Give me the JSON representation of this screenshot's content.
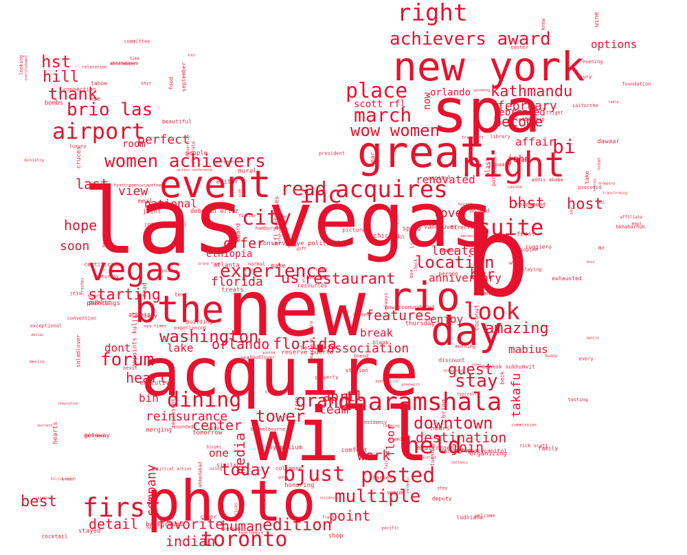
{
  "cloud": {
    "color": "#e8112d",
    "background": "#ffffff",
    "shape": "bird",
    "words": [
      "las",
      "vegas",
      "new",
      "spa",
      "b",
      "will",
      "acquire",
      "photo",
      "new york",
      "event",
      "great",
      "night",
      "day",
      "rio",
      "bthe",
      "dharamshala",
      "vegas",
      "dining",
      "toronto",
      "first",
      "look",
      "suite",
      "held",
      "posted",
      "bjust",
      "achievers award",
      "right",
      "place",
      "march",
      "women achievers",
      "airport",
      "brio las",
      "hst",
      "hill",
      "thank",
      "city",
      "inc",
      "acquires",
      "read",
      "experience",
      "location",
      "florida",
      "us",
      "restaurant",
      "washington",
      "orlando",
      "florida",
      "forum",
      "heart",
      "grand",
      "tower",
      "april",
      "team",
      "downtown",
      "destination",
      "join",
      "work",
      "media",
      "today",
      "multiple",
      "edition",
      "human",
      "indian",
      "favorite",
      "detail",
      "company",
      "point",
      "best",
      "stay",
      "guest",
      "amazing",
      "mabius",
      "takafu",
      "enjoy",
      "bar",
      "features",
      "break",
      "association",
      "anniversary",
      "offer",
      "ethiopia",
      "starting",
      "lake",
      "dont",
      "bin",
      "reinsurance",
      "center",
      "one",
      "floor",
      "hope",
      "soon",
      "last",
      "view",
      "national",
      "perfect",
      "room",
      "wow women",
      "kathmandu",
      "february",
      "become",
      "rebranded",
      "bi",
      "options",
      "affair",
      "bhst",
      "host",
      "renovated",
      "love",
      "located",
      "orlando",
      "scott rfl",
      "john",
      "now"
    ],
    "small_words": [
      "capitol",
      "throughout",
      "regencycapitol",
      "leadership",
      "merging",
      "certificate",
      "deborah ortiz",
      "rfl addresses",
      "hyattregencycapetown",
      "library",
      "addis ababa",
      "director",
      "hamburger",
      "food",
      "celebrate",
      "staying",
      "greenwich",
      "resources",
      "fresh",
      "manila",
      "vancouver",
      "tomorrow",
      "society",
      "puerto rico",
      "luxury",
      "using",
      "cool",
      "top",
      "fair",
      "text",
      "person",
      "crystal",
      "fairfax",
      "public",
      "comfort",
      "bigger",
      "plane",
      "tahoe",
      "fourth",
      "dropping",
      "hyattbmore",
      "pacific",
      "bicymi",
      "organized",
      "september",
      "saturday",
      "morning",
      "pool",
      "speed",
      "next",
      "wayne",
      "cheer",
      "win",
      "give",
      "mexico",
      "welcome",
      "bhst",
      "special",
      "back",
      "family",
      "manchester",
      "icarus",
      "pandemic",
      "sounded",
      "ruggiero",
      "newsroomupdated",
      "cocktail",
      "beautiful",
      "make",
      "property",
      "typically",
      "bombs",
      "stayed",
      "organizing",
      "recommend",
      "host",
      "use",
      "mr",
      "commission",
      "collapse",
      "attendance",
      "celebration",
      "cruces",
      "residents",
      "international",
      "executive",
      "recognizing",
      "ministry",
      "offerings",
      "evening",
      "nyc",
      "americas",
      "seafoodlover",
      "eastern shore",
      "charles",
      "spring",
      "atlanta",
      "symposium",
      "conservative political",
      "foundation",
      "brand flags",
      "tour",
      "blast",
      "affiliate",
      "international",
      "bankok sukhumvit",
      "portman",
      "rick scott",
      "table",
      "normal",
      "know",
      "side",
      "vietnam",
      "guess",
      "gift",
      "take",
      "box",
      "editor",
      "access",
      "skivacation",
      "saladlover",
      "chicago",
      "political action",
      "tuesday",
      "announced",
      "meal",
      "transport",
      "bcool",
      "people",
      "morning",
      "shop",
      "bexit",
      "wine",
      "hours",
      "mural",
      "art",
      "ludhiana",
      "honoring",
      "much",
      "represents",
      "building",
      "jeju",
      "road",
      "hellenic",
      "casino",
      "award",
      "dawaar",
      "presidency",
      "sky",
      "connection",
      "booked",
      "coconut",
      "check",
      "feast",
      "tasting",
      "bring",
      "raretuna",
      "crashes",
      "glassbottom",
      "president",
      "experienced",
      "marriage",
      "saiforthe",
      "cartagena",
      "category",
      "kuljit singh",
      "laughing",
      "jury",
      "exceptional",
      "upcoming",
      "flight",
      "discount",
      "looking",
      "convention",
      "exhausted",
      "staycation",
      "getaway",
      "ahmedabad",
      "reserve puerto",
      "bkhabarhub",
      "messe",
      "step",
      "maui",
      "oyo times",
      "appoints kuljit",
      "committee",
      "energy",
      "bunny",
      "trip",
      "miami",
      "ocean",
      "burrard",
      "deputy",
      "overshadowed",
      "scary",
      "january",
      "time",
      "area",
      "every",
      "venue",
      "easter",
      "near",
      "bleak",
      "precovid",
      "thursday",
      "posted",
      "background",
      "hearts",
      "bneed",
      "ahituna",
      "bguess",
      "station",
      "inner",
      "beven",
      "light",
      "joint",
      "dallas",
      "similar",
      "pictures",
      "always",
      "ahi",
      "baymelbourne",
      "treats",
      "ethiopian",
      "action conference",
      "transforming",
      "hyattregency",
      "paintings",
      "maximizing",
      "hotels",
      "relaxation"
    ]
  }
}
